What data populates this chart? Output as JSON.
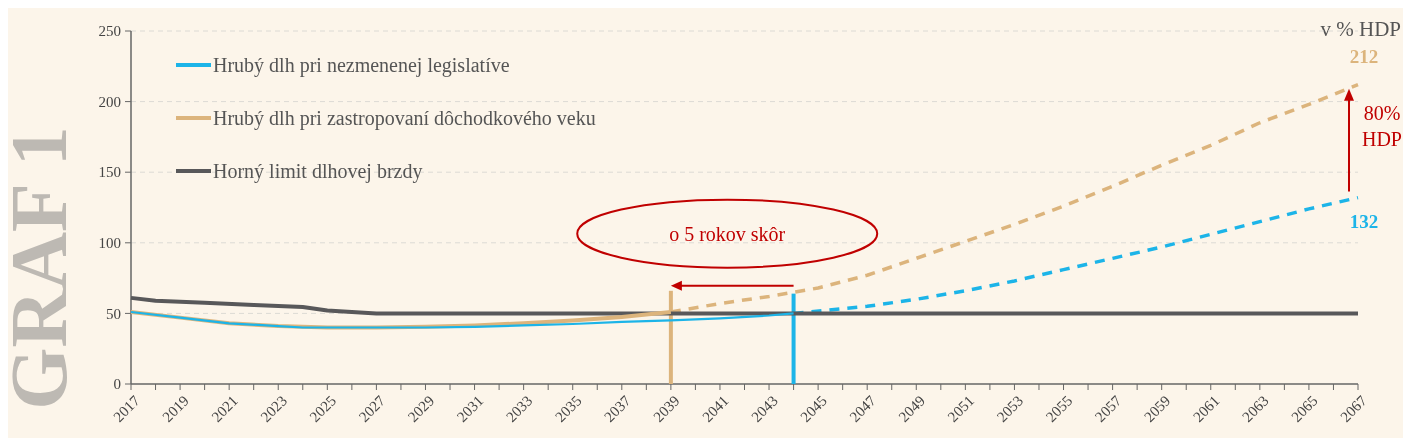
{
  "chart_data": {
    "type": "line",
    "title": "GRAF 1",
    "ylabel": "v % HDP",
    "xlim": [
      2017,
      2067
    ],
    "ylim": [
      0,
      250
    ],
    "yticks": [
      0,
      50,
      100,
      150,
      200,
      250
    ],
    "xticks": [
      {
        "value": 2017,
        "label": "2017"
      },
      {
        "value": 2018,
        "label": null
      },
      {
        "value": 2019,
        "label": "2019"
      },
      {
        "value": 2020,
        "label": null
      },
      {
        "value": 2021,
        "label": "2021"
      },
      {
        "value": 2022,
        "label": null
      },
      {
        "value": 2023,
        "label": "2023"
      },
      {
        "value": 2024,
        "label": null
      },
      {
        "value": 2025,
        "label": "2025"
      },
      {
        "value": 2026,
        "label": null
      },
      {
        "value": 2027,
        "label": "2027"
      },
      {
        "value": 2028,
        "label": null
      },
      {
        "value": 2029,
        "label": "2029"
      },
      {
        "value": 2030,
        "label": null
      },
      {
        "value": 2031,
        "label": "2031"
      },
      {
        "value": 2032,
        "label": null
      },
      {
        "value": 2033,
        "label": "2033"
      },
      {
        "value": 2034,
        "label": null
      },
      {
        "value": 2035,
        "label": "2035"
      },
      {
        "value": 2036,
        "label": null
      },
      {
        "value": 2037,
        "label": "2037"
      },
      {
        "value": 2038,
        "label": null
      },
      {
        "value": 2039,
        "label": "2039"
      },
      {
        "value": 2040,
        "label": null
      },
      {
        "value": 2041,
        "label": "2041"
      },
      {
        "value": 2042,
        "label": null
      },
      {
        "value": 2043,
        "label": "2043"
      },
      {
        "value": 2044,
        "label": null
      },
      {
        "value": 2045,
        "label": "2045"
      },
      {
        "value": 2046,
        "label": null
      },
      {
        "value": 2047,
        "label": "2047"
      },
      {
        "value": 2048,
        "label": null
      },
      {
        "value": 2049,
        "label": "2049"
      },
      {
        "value": 2050,
        "label": null
      },
      {
        "value": 2051,
        "label": "2051"
      },
      {
        "value": 2052,
        "label": null
      },
      {
        "value": 2053,
        "label": "2053"
      },
      {
        "value": 2054,
        "label": null
      },
      {
        "value": 2055,
        "label": "2055"
      },
      {
        "value": 2056,
        "label": null
      },
      {
        "value": 2057,
        "label": "2057"
      },
      {
        "value": 2058,
        "label": null
      },
      {
        "value": 2059,
        "label": "2059"
      },
      {
        "value": 2060,
        "label": null
      },
      {
        "value": 2061,
        "label": "2061"
      },
      {
        "value": 2062,
        "label": null
      },
      {
        "value": 2063,
        "label": "2063"
      },
      {
        "value": 2064,
        "label": null
      },
      {
        "value": 2065,
        "label": "2065"
      },
      {
        "value": 2066,
        "label": null
      },
      {
        "value": 2067,
        "label": "2067"
      }
    ],
    "grid": "y",
    "legend": "top left",
    "series": [
      {
        "name": "Hrubý dlh pri nezmenenej legislatíve",
        "color": "#1cb4e8",
        "line_style": "solid",
        "x": [
          2017,
          2019,
          2021,
          2023,
          2024,
          2027,
          2029,
          2031,
          2033,
          2035,
          2037,
          2039,
          2041,
          2043,
          2044
        ],
        "values": [
          51,
          47,
          43,
          41,
          40,
          40,
          40,
          40.5,
          41.5,
          42.5,
          44,
          45,
          46.5,
          48.5,
          50
        ]
      },
      {
        "name": "Hrubý dlh pri zastropovaní dôchodkového veku",
        "color": "#dcb47c",
        "line_style": "solid",
        "x": [
          2017,
          2019,
          2021,
          2023,
          2025,
          2027,
          2029,
          2031,
          2033,
          2035,
          2037,
          2039
        ],
        "values": [
          51,
          47,
          43,
          41,
          40,
          40,
          40.5,
          41.5,
          43,
          45,
          47.5,
          51
        ]
      },
      {
        "name": "Horný limit dlhovej brzdy",
        "color": "#58585a",
        "line_style": "solid",
        "x": [
          2017,
          2018,
          2020,
          2022,
          2024,
          2025,
          2027,
          2067
        ],
        "values": [
          61,
          59,
          57.5,
          56,
          54.5,
          52,
          50,
          50
        ]
      },
      {
        "color": "#1cb4e8",
        "line_style": "dashed",
        "x": [
          2044,
          2047,
          2049,
          2051,
          2053,
          2055,
          2057,
          2059,
          2061,
          2063,
          2065,
          2067
        ],
        "values": [
          50,
          55,
          60,
          66,
          73,
          81,
          89,
          97,
          106,
          115,
          124,
          132
        ],
        "value_labels": [
          null,
          null,
          null,
          null,
          null,
          null,
          null,
          null,
          null,
          null,
          null,
          "132"
        ]
      },
      {
        "color": "#dcb47c",
        "line_style": "dashed",
        "x": [
          2039,
          2041,
          2043,
          2045,
          2047,
          2049,
          2051,
          2053,
          2055,
          2057,
          2059,
          2061,
          2063,
          2065,
          2067
        ],
        "values": [
          51,
          57,
          62,
          68,
          77,
          89,
          101,
          113,
          126,
          140,
          155,
          169,
          185,
          198,
          212
        ],
        "value_labels": [
          null,
          null,
          null,
          null,
          null,
          null,
          null,
          null,
          null,
          null,
          null,
          null,
          null,
          null,
          "212"
        ]
      },
      {
        "color": "#dcb47c",
        "line_style": "solid",
        "x": [
          2039,
          2039
        ],
        "values": [
          0,
          66
        ]
      },
      {
        "color": "#1cb4e8",
        "line_style": "solid",
        "x": [
          2044,
          2044
        ],
        "values": [
          0,
          64
        ]
      }
    ],
    "annotations": [
      "o 5 rokov skôr",
      "80% HDP"
    ]
  }
}
